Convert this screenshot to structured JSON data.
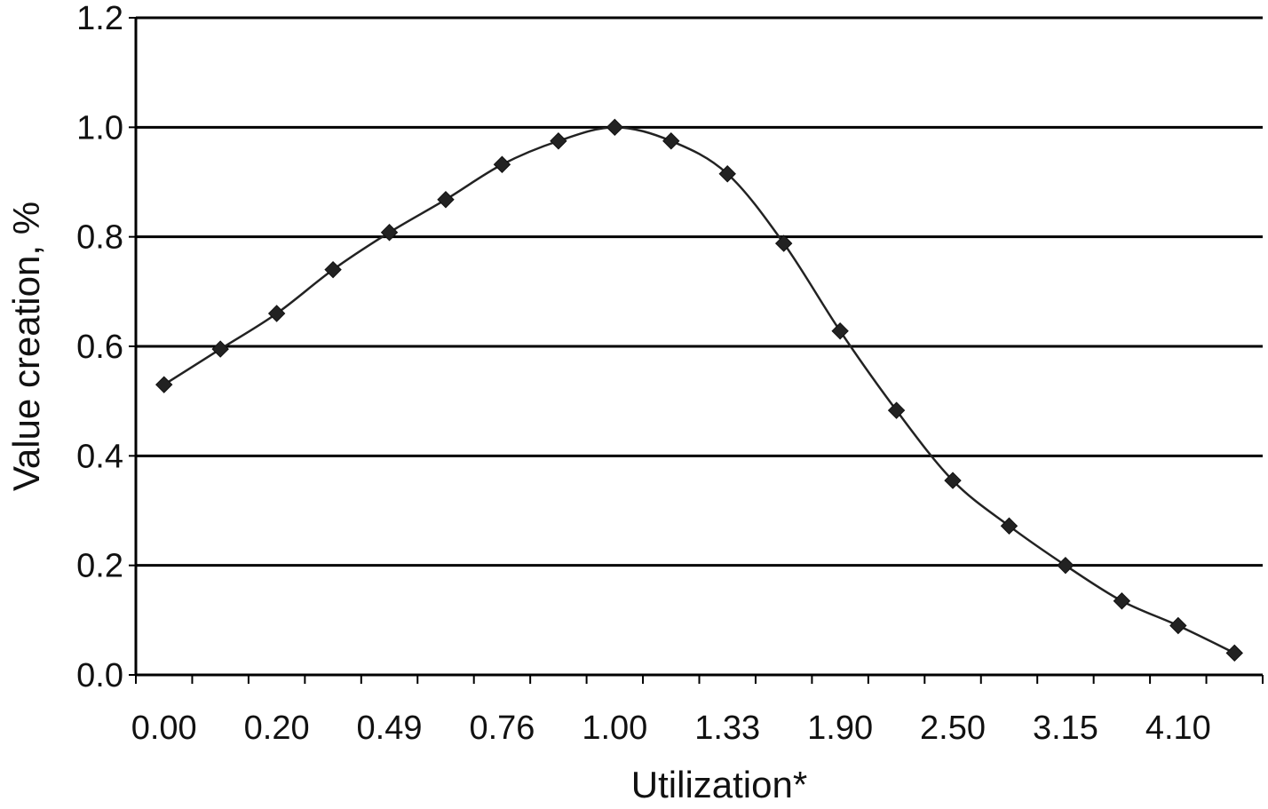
{
  "chart_data": {
    "type": "line",
    "xlabel": "Utilization*",
    "ylabel": "Value creation, %",
    "ylim": [
      0,
      1.2
    ],
    "yticks": [
      "0.0",
      "0.2",
      "0.4",
      "0.6",
      "0.8",
      "1.0",
      "1.2"
    ],
    "xtick_labels": [
      "0.00",
      "0.20",
      "0.49",
      "0.76",
      "1.00",
      "1.33",
      "1.90",
      "2.50",
      "3.15",
      "4.10"
    ],
    "grid": "horizontal",
    "marker": "diamond",
    "series": [
      {
        "values": [
          0.53,
          0.595,
          0.66,
          0.74,
          0.808,
          0.868,
          0.932,
          0.975,
          1.0,
          0.975,
          0.915,
          0.788,
          0.628,
          0.483,
          0.355,
          0.272,
          0.2,
          0.135,
          0.09,
          0.04
        ]
      }
    ],
    "colors": {
      "line": "#222222",
      "grid": "#000000"
    }
  }
}
